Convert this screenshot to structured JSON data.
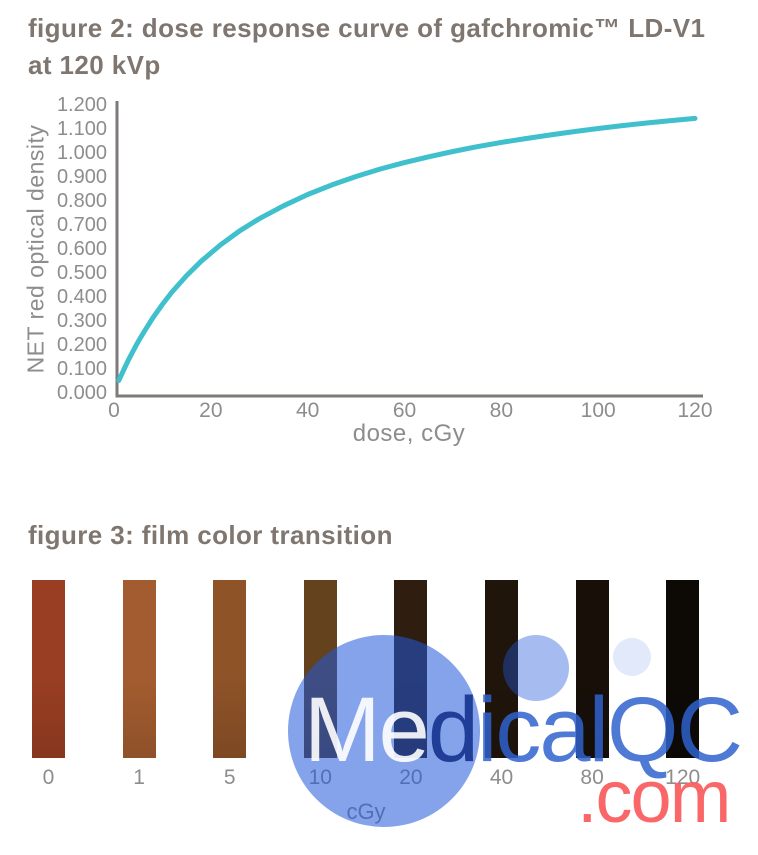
{
  "figure2": {
    "title_line1": "figure 2: dose response curve of gafchromic™ LD-V1",
    "title_line2": "at 120 kVp",
    "y_axis_label": "NET red optical density",
    "x_axis_label": "dose, cGy",
    "curve_color": "#3fc0cc",
    "axis_color": "#7e7a77",
    "tick_color": "#8d8d8d"
  },
  "chart_data": [
    {
      "type": "line",
      "title": "figure 2: dose response curve of gafchromic™ LD-V1 at 120 kVp",
      "xlabel": "dose, cGy",
      "ylabel": "NET red optical density",
      "xlim": [
        0,
        120
      ],
      "ylim": [
        0,
        1.2
      ],
      "grid": false,
      "legend": "none",
      "x_ticks": [
        0,
        20,
        40,
        60,
        80,
        100,
        120
      ],
      "y_tick_labels": [
        "0.000",
        "0.100",
        "0.200",
        "0.300",
        "0.400",
        "0.500",
        "0.600",
        "0.700",
        "0.800",
        "0.900",
        "1.000",
        "1.100",
        "1.200"
      ],
      "series": [
        {
          "name": "NET red optical density",
          "x": [
            1,
            2,
            3,
            4,
            5,
            6,
            8,
            10,
            12,
            15,
            18,
            22,
            26,
            30,
            35,
            40,
            45,
            50,
            55,
            60,
            65,
            70,
            75,
            80,
            85,
            90,
            95,
            100,
            105,
            110,
            115,
            120
          ],
          "y": [
            0.048,
            0.092,
            0.134,
            0.173,
            0.21,
            0.244,
            0.308,
            0.365,
            0.417,
            0.485,
            0.545,
            0.613,
            0.672,
            0.722,
            0.776,
            0.823,
            0.863,
            0.898,
            0.929,
            0.956,
            0.98,
            1.002,
            1.022,
            1.04,
            1.056,
            1.071,
            1.085,
            1.098,
            1.11,
            1.121,
            1.131,
            1.14
          ]
        }
      ]
    },
    {
      "type": "swatches",
      "title": "figure 3: film color transition",
      "xlabel": "cGy",
      "categories": [
        "0",
        "1",
        "5",
        "10",
        "20",
        "40",
        "80",
        "120"
      ],
      "colors": [
        "#993e23",
        "#a35c2f",
        "#8e5327",
        "#63421d",
        "#2f1d0f",
        "#20150b",
        "#170f08",
        "#0d0a06"
      ]
    }
  ],
  "figure3": {
    "title": "figure 3: film color transition",
    "unit_label": "cGy",
    "swatches": [
      {
        "dose": "0",
        "color": "#993e23"
      },
      {
        "dose": "1",
        "color": "#a35c2f"
      },
      {
        "dose": "5",
        "color": "#8e5327"
      },
      {
        "dose": "10",
        "color": "#63421d"
      },
      {
        "dose": "20",
        "color": "#2f1d0f"
      },
      {
        "dose": "40",
        "color": "#20150b"
      },
      {
        "dose": "80",
        "color": "#170f08"
      },
      {
        "dose": "120",
        "color": "#0d0a06"
      }
    ]
  },
  "watermark": {
    "text_light": "Me",
    "text_dark": "d",
    "text_blue": "icalQC",
    "com_text": ".com",
    "circle_color_large": "rgba(32,87,217,0.55)",
    "circle_color_medium": "rgba(32,87,217,0.40)",
    "circle_color_small": "rgba(32,87,217,0.13)",
    "color_light": "rgba(255,255,255,0.90)",
    "color_dark": "rgba(18,48,140,0.88)",
    "color_blue": "rgba(47,98,205,0.85)",
    "color_red": "rgba(249,95,97,0.95)"
  }
}
